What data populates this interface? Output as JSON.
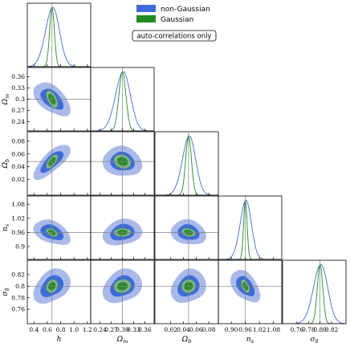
{
  "chart_data": {
    "type": "corner",
    "parameters": [
      {
        "key": "h",
        "main": "h",
        "sub": "",
        "range": [
          0.3,
          1.25
        ],
        "ticks": [
          "0.4",
          "0.6",
          "0.8",
          "1.0",
          "1.2"
        ],
        "fid": 0.67
      },
      {
        "key": "Om",
        "main": "Ω",
        "sub": "m",
        "range": [
          0.215,
          0.385
        ],
        "ticks": [
          "0.24",
          "0.27",
          "0.30",
          "0.33",
          "0.36"
        ],
        "fid": 0.3
      },
      {
        "key": "Ob",
        "main": "Ω",
        "sub": "b",
        "range": [
          -0.005,
          0.095
        ],
        "ticks": [
          "0.02",
          "0.04",
          "0.06",
          "0.08"
        ],
        "fid": 0.048
      },
      {
        "key": "ns",
        "main": "n",
        "sub": "s",
        "range": [
          0.845,
          1.115
        ],
        "ticks": [
          "0.90",
          "0.96",
          "1.02",
          "1.08"
        ],
        "fid": 0.96
      },
      {
        "key": "s8",
        "main": "σ",
        "sub": "8",
        "range": [
          0.735,
          0.845
        ],
        "ticks": [
          "0.76",
          "0.78",
          "0.80",
          "0.82"
        ],
        "fid": 0.8
      }
    ],
    "y_tick_labels": {
      "Om": [
        "0.24",
        "0.27",
        "0.3",
        "0.33",
        "0.36"
      ],
      "Ob": [
        "0.02",
        "0.04",
        "0.06",
        "0.08"
      ],
      "ns": [
        "0.9",
        "0.96",
        "1.02",
        "1.08"
      ],
      "s8": [
        "0.76",
        "0.78",
        "0.8",
        "0.82"
      ]
    },
    "series": [
      {
        "name": "non-Gaussian",
        "color": "#3c6cdc",
        "sigma": {
          "h": 0.105,
          "Om": 0.02,
          "Ob": 0.0105,
          "ns": 0.024,
          "s8": 0.0125
        }
      },
      {
        "name": "Gaussian",
        "color": "#228b22",
        "sigma": {
          "h": 0.036,
          "Om": 0.0095,
          "Ob": 0.0046,
          "ns": 0.0075,
          "s8": 0.0048
        }
      }
    ],
    "correlations": {
      "Om|h": -0.55,
      "Ob|h": 0.65,
      "Ob|Om": -0.2,
      "ns|h": -0.45,
      "ns|Om": 0.05,
      "ns|Ob": -0.25,
      "s8|h": 0.2,
      "s8|Om": 0.1,
      "s8|Ob": 0.05,
      "s8|ns": -0.5
    },
    "contour_levels": [
      "68%",
      "95%"
    ],
    "legend_position": "top-right",
    "annotation": "auto-correlations only",
    "colors": {
      "contour_outer": "#aab9e8",
      "contour_inner": "#3c6cdc",
      "gaussian_fill": "#8cb88a",
      "gaussian_outline": "#228b22",
      "fiducial_line": "#808080"
    }
  }
}
